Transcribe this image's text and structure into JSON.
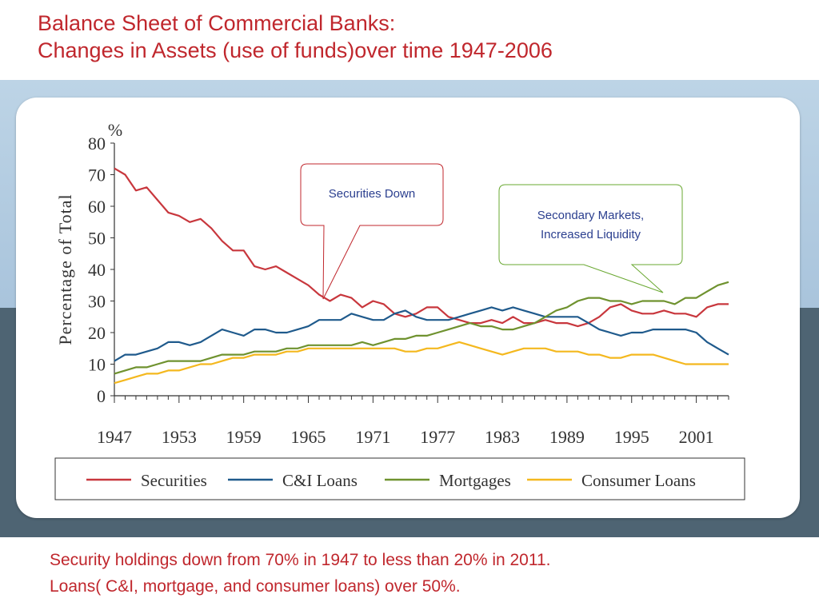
{
  "slide": {
    "title_line1": "Balance Sheet of Commercial Banks:",
    "title_line2": "Changes in Assets (use of funds)over time 1947-2006",
    "footer_line1": "Security holdings down from 70% in 1947 to less than 20% in 2011.",
    "footer_line2": "Loans( C&I, mortgage, and consumer loans) over 50%."
  },
  "callouts": {
    "securities_down": "Securities Down",
    "secondary_markets_line1": "Secondary Markets,",
    "secondary_markets_line2": "Increased Liquidity"
  },
  "colors": {
    "securities": "#c8373d",
    "ci_loans": "#1f5a8c",
    "mortgages": "#6f922f",
    "consumer_loans": "#f4b81e",
    "callout_red": "#c0272d",
    "callout_green": "#6aa832"
  },
  "chart_data": {
    "type": "line",
    "ylabel": "Percentage of Total",
    "yunit": "%",
    "ylim": [
      0,
      80
    ],
    "xlim": [
      1947,
      2004
    ],
    "yticks": [
      0,
      10,
      20,
      30,
      40,
      50,
      60,
      70,
      80
    ],
    "xticks": [
      1947,
      1953,
      1959,
      1965,
      1971,
      1977,
      1983,
      1989,
      1995,
      2001
    ],
    "legend_position": "bottom",
    "series": [
      {
        "name": "Securities",
        "points": [
          [
            1947,
            72
          ],
          [
            1948,
            70
          ],
          [
            1949,
            65
          ],
          [
            1950,
            66
          ],
          [
            1951,
            62
          ],
          [
            1952,
            58
          ],
          [
            1953,
            57
          ],
          [
            1954,
            55
          ],
          [
            1955,
            56
          ],
          [
            1956,
            53
          ],
          [
            1957,
            49
          ],
          [
            1958,
            46
          ],
          [
            1959,
            46
          ],
          [
            1960,
            41
          ],
          [
            1961,
            40
          ],
          [
            1962,
            41
          ],
          [
            1963,
            39
          ],
          [
            1964,
            37
          ],
          [
            1965,
            35
          ],
          [
            1966,
            32
          ],
          [
            1967,
            30
          ],
          [
            1968,
            32
          ],
          [
            1969,
            31
          ],
          [
            1970,
            28
          ],
          [
            1971,
            30
          ],
          [
            1972,
            29
          ],
          [
            1973,
            26
          ],
          [
            1974,
            25
          ],
          [
            1975,
            26
          ],
          [
            1976,
            28
          ],
          [
            1977,
            28
          ],
          [
            1978,
            25
          ],
          [
            1979,
            24
          ],
          [
            1980,
            23
          ],
          [
            1981,
            23
          ],
          [
            1982,
            24
          ],
          [
            1983,
            23
          ],
          [
            1984,
            25
          ],
          [
            1985,
            23
          ],
          [
            1986,
            23
          ],
          [
            1987,
            24
          ],
          [
            1988,
            23
          ],
          [
            1989,
            23
          ],
          [
            1990,
            22
          ],
          [
            1991,
            23
          ],
          [
            1992,
            25
          ],
          [
            1993,
            28
          ],
          [
            1994,
            29
          ],
          [
            1995,
            27
          ],
          [
            1996,
            26
          ],
          [
            1997,
            26
          ],
          [
            1998,
            27
          ],
          [
            1999,
            26
          ],
          [
            2000,
            26
          ],
          [
            2001,
            25
          ],
          [
            2002,
            28
          ],
          [
            2003,
            29
          ],
          [
            2004,
            29
          ]
        ]
      },
      {
        "name": "C&I Loans",
        "points": [
          [
            1947,
            11
          ],
          [
            1948,
            13
          ],
          [
            1949,
            13
          ],
          [
            1950,
            14
          ],
          [
            1951,
            15
          ],
          [
            1952,
            17
          ],
          [
            1953,
            17
          ],
          [
            1954,
            16
          ],
          [
            1955,
            17
          ],
          [
            1956,
            19
          ],
          [
            1957,
            21
          ],
          [
            1958,
            20
          ],
          [
            1959,
            19
          ],
          [
            1960,
            21
          ],
          [
            1961,
            21
          ],
          [
            1962,
            20
          ],
          [
            1963,
            20
          ],
          [
            1964,
            21
          ],
          [
            1965,
            22
          ],
          [
            1966,
            24
          ],
          [
            1967,
            24
          ],
          [
            1968,
            24
          ],
          [
            1969,
            26
          ],
          [
            1970,
            25
          ],
          [
            1971,
            24
          ],
          [
            1972,
            24
          ],
          [
            1973,
            26
          ],
          [
            1974,
            27
          ],
          [
            1975,
            25
          ],
          [
            1976,
            24
          ],
          [
            1977,
            24
          ],
          [
            1978,
            24
          ],
          [
            1979,
            25
          ],
          [
            1980,
            26
          ],
          [
            1981,
            27
          ],
          [
            1982,
            28
          ],
          [
            1983,
            27
          ],
          [
            1984,
            28
          ],
          [
            1985,
            27
          ],
          [
            1986,
            26
          ],
          [
            1987,
            25
          ],
          [
            1988,
            25
          ],
          [
            1989,
            25
          ],
          [
            1990,
            25
          ],
          [
            1991,
            23
          ],
          [
            1992,
            21
          ],
          [
            1993,
            20
          ],
          [
            1994,
            19
          ],
          [
            1995,
            20
          ],
          [
            1996,
            20
          ],
          [
            1997,
            21
          ],
          [
            1998,
            21
          ],
          [
            1999,
            21
          ],
          [
            2000,
            21
          ],
          [
            2001,
            20
          ],
          [
            2002,
            17
          ],
          [
            2003,
            15
          ],
          [
            2004,
            13
          ]
        ]
      },
      {
        "name": "Mortgages",
        "points": [
          [
            1947,
            7
          ],
          [
            1948,
            8
          ],
          [
            1949,
            9
          ],
          [
            1950,
            9
          ],
          [
            1951,
            10
          ],
          [
            1952,
            11
          ],
          [
            1953,
            11
          ],
          [
            1954,
            11
          ],
          [
            1955,
            11
          ],
          [
            1956,
            12
          ],
          [
            1957,
            13
          ],
          [
            1958,
            13
          ],
          [
            1959,
            13
          ],
          [
            1960,
            14
          ],
          [
            1961,
            14
          ],
          [
            1962,
            14
          ],
          [
            1963,
            15
          ],
          [
            1964,
            15
          ],
          [
            1965,
            16
          ],
          [
            1966,
            16
          ],
          [
            1967,
            16
          ],
          [
            1968,
            16
          ],
          [
            1969,
            16
          ],
          [
            1970,
            17
          ],
          [
            1971,
            16
          ],
          [
            1972,
            17
          ],
          [
            1973,
            18
          ],
          [
            1974,
            18
          ],
          [
            1975,
            19
          ],
          [
            1976,
            19
          ],
          [
            1977,
            20
          ],
          [
            1978,
            21
          ],
          [
            1979,
            22
          ],
          [
            1980,
            23
          ],
          [
            1981,
            22
          ],
          [
            1982,
            22
          ],
          [
            1983,
            21
          ],
          [
            1984,
            21
          ],
          [
            1985,
            22
          ],
          [
            1986,
            23
          ],
          [
            1987,
            25
          ],
          [
            1988,
            27
          ],
          [
            1989,
            28
          ],
          [
            1990,
            30
          ],
          [
            1991,
            31
          ],
          [
            1992,
            31
          ],
          [
            1993,
            30
          ],
          [
            1994,
            30
          ],
          [
            1995,
            29
          ],
          [
            1996,
            30
          ],
          [
            1997,
            30
          ],
          [
            1998,
            30
          ],
          [
            1999,
            29
          ],
          [
            2000,
            31
          ],
          [
            2001,
            31
          ],
          [
            2002,
            33
          ],
          [
            2003,
            35
          ],
          [
            2004,
            36
          ]
        ]
      },
      {
        "name": "Consumer Loans",
        "points": [
          [
            1947,
            4
          ],
          [
            1948,
            5
          ],
          [
            1949,
            6
          ],
          [
            1950,
            7
          ],
          [
            1951,
            7
          ],
          [
            1952,
            8
          ],
          [
            1953,
            8
          ],
          [
            1954,
            9
          ],
          [
            1955,
            10
          ],
          [
            1956,
            10
          ],
          [
            1957,
            11
          ],
          [
            1958,
            12
          ],
          [
            1959,
            12
          ],
          [
            1960,
            13
          ],
          [
            1961,
            13
          ],
          [
            1962,
            13
          ],
          [
            1963,
            14
          ],
          [
            1964,
            14
          ],
          [
            1965,
            15
          ],
          [
            1966,
            15
          ],
          [
            1967,
            15
          ],
          [
            1968,
            15
          ],
          [
            1969,
            15
          ],
          [
            1970,
            15
          ],
          [
            1971,
            15
          ],
          [
            1972,
            15
          ],
          [
            1973,
            15
          ],
          [
            1974,
            14
          ],
          [
            1975,
            14
          ],
          [
            1976,
            15
          ],
          [
            1977,
            15
          ],
          [
            1978,
            16
          ],
          [
            1979,
            17
          ],
          [
            1980,
            16
          ],
          [
            1981,
            15
          ],
          [
            1982,
            14
          ],
          [
            1983,
            13
          ],
          [
            1984,
            14
          ],
          [
            1985,
            15
          ],
          [
            1986,
            15
          ],
          [
            1987,
            15
          ],
          [
            1988,
            14
          ],
          [
            1989,
            14
          ],
          [
            1990,
            14
          ],
          [
            1991,
            13
          ],
          [
            1992,
            13
          ],
          [
            1993,
            12
          ],
          [
            1994,
            12
          ],
          [
            1995,
            13
          ],
          [
            1996,
            13
          ],
          [
            1997,
            13
          ],
          [
            1998,
            12
          ],
          [
            1999,
            11
          ],
          [
            2000,
            10
          ],
          [
            2001,
            10
          ],
          [
            2002,
            10
          ],
          [
            2003,
            10
          ],
          [
            2004,
            10
          ]
        ]
      }
    ]
  }
}
